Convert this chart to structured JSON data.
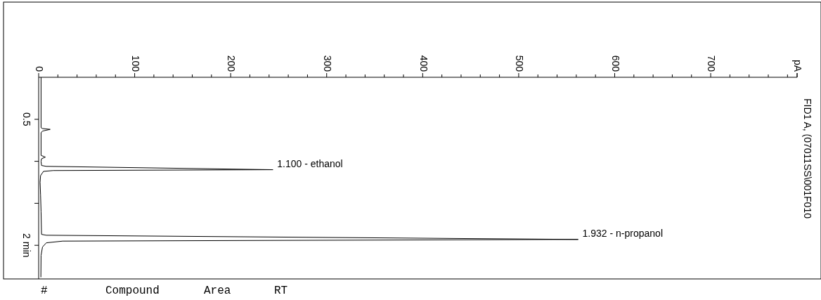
{
  "chart_data": {
    "type": "line",
    "title": "FID1 A, (07011SS\\001F010",
    "xlim": [
      0,
      790
    ],
    "ylim": [
      2.4,
      0
    ],
    "xticks": [
      0,
      {
        "value": 20,
        "label": null
      },
      {
        "value": 40,
        "label": null
      },
      {
        "value": 60,
        "label": null
      },
      {
        "value": 80,
        "label": null
      },
      100,
      {
        "value": 120,
        "label": null
      },
      {
        "value": 140,
        "label": null
      },
      {
        "value": 160,
        "label": null
      },
      {
        "value": 180,
        "label": null
      },
      200,
      {
        "value": 220,
        "label": null
      },
      {
        "value": 240,
        "label": null
      },
      {
        "value": 260,
        "label": null
      },
      {
        "value": 280,
        "label": null
      },
      300,
      {
        "value": 320,
        "label": null
      },
      {
        "value": 340,
        "label": null
      },
      {
        "value": 360,
        "label": null
      },
      {
        "value": 380,
        "label": null
      },
      400,
      {
        "value": 420,
        "label": null
      },
      {
        "value": 440,
        "label": null
      },
      {
        "value": 460,
        "label": null
      },
      {
        "value": 480,
        "label": null
      },
      500,
      {
        "value": 520,
        "label": null
      },
      {
        "value": 540,
        "label": null
      },
      {
        "value": 560,
        "label": null
      },
      {
        "value": 580,
        "label": null
      },
      600,
      {
        "value": 620,
        "label": null
      },
      {
        "value": 640,
        "label": null
      },
      {
        "value": 660,
        "label": null
      },
      {
        "value": 680,
        "label": null
      },
      700,
      {
        "value": 720,
        "label": null
      },
      {
        "value": 740,
        "label": null
      },
      {
        "value": 760,
        "label": null
      },
      {
        "value": 780,
        "label": null
      },
      {
        "value": 790,
        "label": "pA"
      }
    ],
    "yticks": [
      0.5,
      {
        "value": 1,
        "label": null
      },
      {
        "value": 1.5,
        "label": null
      },
      {
        "value": 2,
        "label": "2 min"
      }
    ],
    "grid": false,
    "marker": "none",
    "line_style": "solid",
    "series": [
      {
        "color": "#000000",
        "x": [
          2.5,
          2.5,
          4,
          12,
          4,
          2.5,
          2.5,
          7,
          3,
          2.5,
          3,
          8,
          244,
          15,
          5,
          2,
          1.5,
          2,
          2.5,
          3,
          8,
          562,
          25,
          8,
          4,
          2.5,
          2.3
        ],
        "values": [
          0.0,
          0.6,
          0.61,
          0.62,
          0.64,
          0.66,
          0.93,
          0.95,
          0.97,
          1.0,
          1.05,
          1.06,
          1.1,
          1.11,
          1.12,
          1.17,
          1.25,
          1.4,
          1.6,
          1.87,
          1.88,
          1.93,
          1.95,
          1.97,
          2.02,
          2.12,
          2.38
        ]
      }
    ],
    "annotations": [
      {
        "text": "1.100 -  ethanol",
        "x": 244,
        "y": 1.1
      },
      {
        "text": "1.932 -  n-propanol",
        "x": 562,
        "y": 1.932
      },
      "#",
      "Compound",
      "Area",
      "RT"
    ]
  }
}
